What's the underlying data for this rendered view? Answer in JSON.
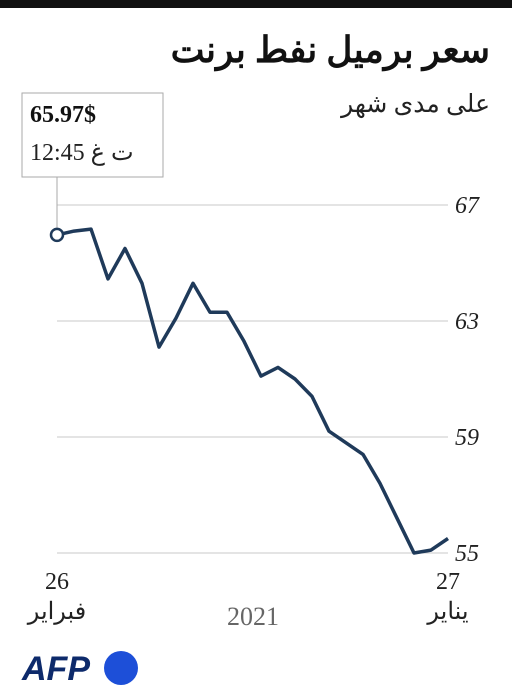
{
  "chart_data": {
    "type": "line",
    "title": "سعر برميل نفط برنت",
    "subtitle": "على مدى شهر",
    "annotation": {
      "text": "65.97$",
      "time": "12:45 ت غ"
    },
    "categories": [
      "26\nفبراير",
      null,
      null,
      null,
      null,
      null,
      null,
      null,
      null,
      null,
      null,
      null,
      null,
      null,
      null,
      null,
      null,
      null,
      null,
      null,
      null,
      null,
      null,
      "27\nيناير"
    ],
    "x_label": "2021",
    "values": [
      65.97,
      66.1,
      66.17,
      64.45,
      65.5,
      64.3,
      62.1,
      63.1,
      64.3,
      63.3,
      63.3,
      62.3,
      61.1,
      61.4,
      61.0,
      60.4,
      59.2,
      58.8,
      58.4,
      57.4,
      56.2,
      55.0,
      55.1,
      55.5
    ],
    "color": "#1f3a5a",
    "ylim": [
      55,
      67
    ],
    "yticks": [
      55,
      59,
      63,
      67
    ],
    "grid": true,
    "source": "AFP"
  }
}
